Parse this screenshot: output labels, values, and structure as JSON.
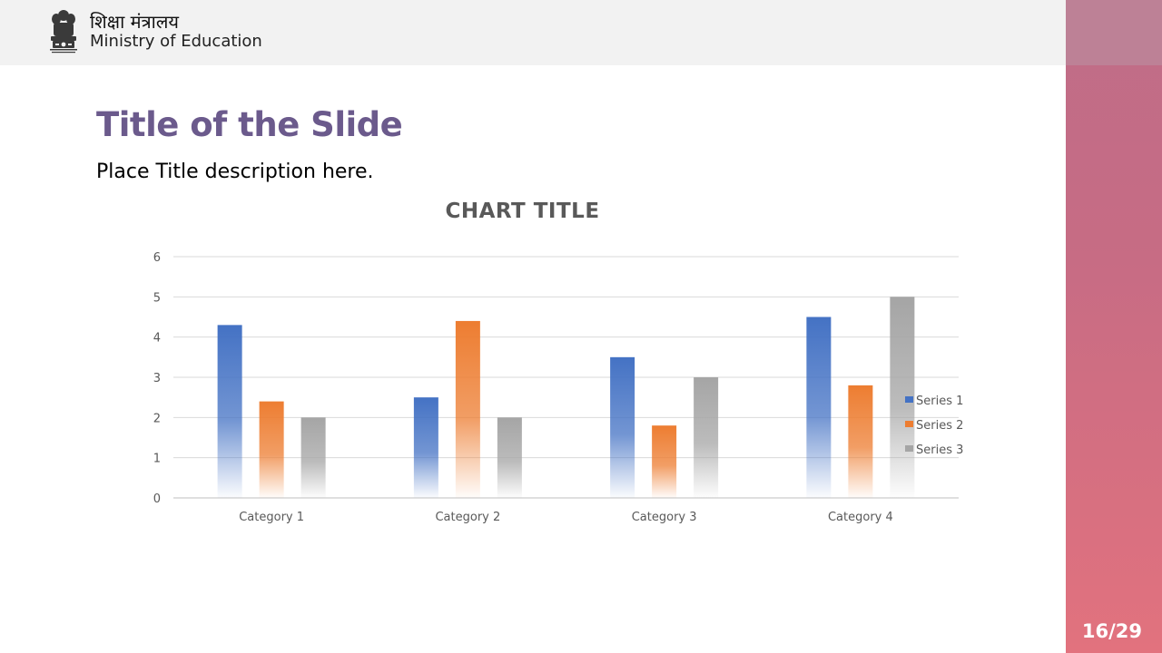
{
  "header": {
    "org_name_hindi": "शिक्षा मंत्रालय",
    "org_name_english": "Ministry of Education",
    "emblem_icon": "national-emblem-icon"
  },
  "slide": {
    "title": "Title of the Slide",
    "description": "Place Title description here.",
    "page_number": "16/29"
  },
  "colors": {
    "title": "#6b5a8c",
    "side_panel_top": "#bf6d88",
    "side_panel_bottom": "#e2727e",
    "header_bg": "#f2f2f2"
  },
  "chart_data": {
    "type": "bar",
    "title": "CHART TITLE",
    "categories": [
      "Category 1",
      "Category 2",
      "Category 3",
      "Category 4"
    ],
    "series": [
      {
        "name": "Series 1",
        "values": [
          4.3,
          2.5,
          3.5,
          4.5
        ],
        "color": "#4472c4"
      },
      {
        "name": "Series 2",
        "values": [
          2.4,
          4.4,
          1.8,
          2.8
        ],
        "color": "#ed7d31"
      },
      {
        "name": "Series 3",
        "values": [
          2,
          2,
          3,
          5
        ],
        "color": "#a5a5a5"
      }
    ],
    "ylim": [
      0,
      6
    ],
    "yticks": [
      "0",
      "1",
      "2",
      "3",
      "4",
      "5",
      "6"
    ],
    "xlabel": "",
    "ylabel": "",
    "grid": true,
    "legend": "right"
  }
}
